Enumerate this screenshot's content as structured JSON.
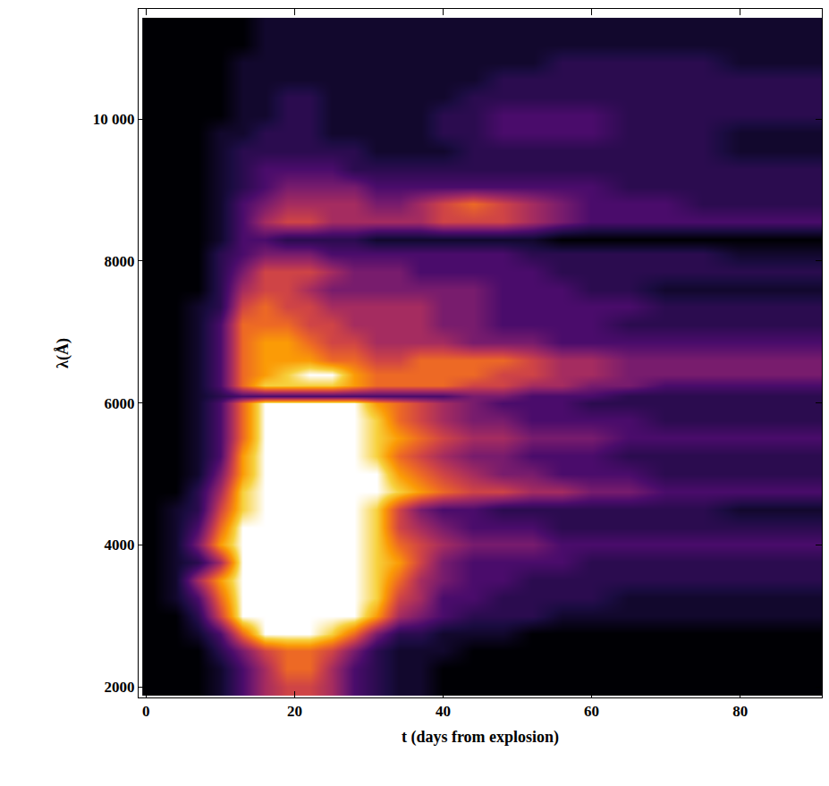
{
  "chart_data": {
    "type": "heatmap",
    "x_label": "t (days from explosion)",
    "y_label": "λ(Å)",
    "x": [
      1,
      4,
      7,
      10,
      13,
      16,
      19,
      22,
      25,
      28,
      31,
      34,
      37,
      40,
      44,
      48,
      52,
      56,
      60,
      65,
      70,
      75,
      80,
      85,
      90
    ],
    "y": [
      2000,
      2250,
      2500,
      2750,
      3000,
      3250,
      3500,
      3750,
      4000,
      4250,
      4500,
      4750,
      5000,
      5250,
      5500,
      5750,
      6000,
      6100,
      6250,
      6400,
      6600,
      6850,
      7100,
      7350,
      7600,
      7850,
      8100,
      8300,
      8550,
      8800,
      9050,
      9300,
      9550,
      9800,
      10050,
      10300,
      10550,
      10800,
      11050,
      11300
    ],
    "z": [
      [
        0,
        0,
        0,
        1,
        3,
        5,
        6,
        6,
        5,
        3,
        2,
        1,
        1,
        0,
        0,
        0,
        0,
        0,
        0,
        0,
        0,
        0,
        0,
        0,
        0
      ],
      [
        0,
        0,
        0,
        1,
        3,
        5,
        7,
        7,
        5,
        3,
        2,
        1,
        1,
        0,
        0,
        0,
        0,
        0,
        0,
        0,
        0,
        0,
        0,
        0,
        0
      ],
      [
        0,
        0,
        0,
        2,
        4,
        6,
        7,
        7,
        6,
        4,
        2,
        1,
        1,
        1,
        0,
        0,
        0,
        0,
        0,
        0,
        0,
        0,
        0,
        0,
        0
      ],
      [
        0,
        0,
        1,
        3,
        7,
        10,
        10,
        10,
        9,
        7,
        4,
        2,
        2,
        1,
        1,
        1,
        0,
        0,
        0,
        0,
        0,
        0,
        0,
        0,
        0
      ],
      [
        0,
        0,
        2,
        6,
        10,
        10,
        10,
        10,
        10,
        10,
        8,
        5,
        4,
        3,
        2,
        2,
        2,
        1,
        1,
        1,
        1,
        1,
        1,
        1,
        1
      ],
      [
        0,
        1,
        3,
        7,
        10,
        10,
        10,
        10,
        10,
        10,
        9,
        6,
        5,
        3,
        3,
        2,
        2,
        2,
        2,
        1,
        1,
        1,
        1,
        1,
        1
      ],
      [
        0,
        1,
        5,
        8,
        10,
        10,
        10,
        10,
        10,
        10,
        9,
        7,
        5,
        4,
        3,
        3,
        2,
        2,
        2,
        2,
        2,
        2,
        2,
        2,
        2
      ],
      [
        0,
        1,
        2,
        5,
        10,
        10,
        10,
        10,
        10,
        10,
        9,
        8,
        6,
        4,
        3,
        3,
        3,
        3,
        2,
        2,
        2,
        2,
        2,
        2,
        2
      ],
      [
        0,
        1,
        4,
        8,
        10,
        10,
        10,
        10,
        10,
        10,
        9,
        7,
        6,
        5,
        4,
        4,
        4,
        3,
        3,
        3,
        3,
        3,
        3,
        3,
        3
      ],
      [
        0,
        1,
        3,
        7,
        10,
        10,
        10,
        10,
        10,
        10,
        9,
        6,
        5,
        4,
        3,
        3,
        3,
        2,
        2,
        2,
        2,
        2,
        2,
        2,
        2
      ],
      [
        0,
        1,
        2,
        6,
        9,
        10,
        10,
        10,
        10,
        10,
        9,
        6,
        4,
        3,
        3,
        2,
        2,
        2,
        2,
        2,
        2,
        2,
        1,
        1,
        1
      ],
      [
        0,
        0,
        2,
        5,
        9,
        10,
        10,
        10,
        10,
        10,
        10,
        9,
        8,
        7,
        6,
        6,
        5,
        5,
        4,
        4,
        3,
        3,
        3,
        3,
        3
      ],
      [
        0,
        0,
        1,
        4,
        8,
        10,
        10,
        10,
        10,
        10,
        10,
        8,
        7,
        6,
        5,
        4,
        4,
        3,
        3,
        3,
        2,
        2,
        2,
        2,
        2
      ],
      [
        0,
        0,
        1,
        3,
        8,
        10,
        10,
        10,
        10,
        10,
        9,
        7,
        6,
        5,
        4,
        4,
        3,
        3,
        3,
        2,
        2,
        2,
        2,
        2,
        2
      ],
      [
        0,
        0,
        1,
        3,
        7,
        10,
        10,
        10,
        10,
        10,
        9,
        8,
        7,
        6,
        5,
        5,
        4,
        4,
        4,
        3,
        3,
        3,
        3,
        3,
        3
      ],
      [
        0,
        0,
        1,
        3,
        7,
        10,
        10,
        10,
        10,
        10,
        9,
        7,
        6,
        5,
        4,
        4,
        3,
        3,
        3,
        3,
        2,
        2,
        2,
        2,
        2
      ],
      [
        0,
        0,
        1,
        3,
        7,
        10,
        10,
        10,
        10,
        10,
        8,
        7,
        6,
        5,
        4,
        3,
        3,
        3,
        2,
        2,
        2,
        2,
        2,
        2,
        2
      ],
      [
        0,
        0,
        1,
        2,
        3,
        3,
        3,
        3,
        3,
        3,
        3,
        3,
        3,
        3,
        4,
        4,
        3,
        3,
        3,
        2,
        2,
        2,
        2,
        2,
        2
      ],
      [
        0,
        0,
        1,
        3,
        7,
        9,
        9,
        9,
        9,
        8,
        7,
        7,
        7,
        7,
        6,
        6,
        5,
        5,
        4,
        4,
        3,
        3,
        3,
        3,
        3
      ],
      [
        0,
        0,
        1,
        3,
        7,
        8,
        9,
        10,
        10,
        8,
        7,
        7,
        7,
        7,
        7,
        6,
        6,
        5,
        5,
        4,
        4,
        4,
        4,
        4,
        4
      ],
      [
        0,
        0,
        1,
        3,
        7,
        8,
        8,
        8,
        7,
        7,
        6,
        6,
        7,
        7,
        7,
        7,
        6,
        5,
        5,
        4,
        4,
        4,
        4,
        4,
        4
      ],
      [
        0,
        0,
        1,
        3,
        7,
        8,
        8,
        7,
        6,
        6,
        5,
        5,
        5,
        5,
        4,
        4,
        4,
        3,
        3,
        3,
        3,
        3,
        3,
        3,
        3
      ],
      [
        0,
        0,
        1,
        3,
        7,
        7,
        7,
        6,
        6,
        5,
        5,
        5,
        5,
        4,
        4,
        3,
        3,
        3,
        3,
        2,
        2,
        2,
        2,
        2,
        2
      ],
      [
        0,
        0,
        1,
        2,
        6,
        7,
        6,
        6,
        5,
        5,
        5,
        5,
        5,
        4,
        4,
        3,
        3,
        3,
        3,
        3,
        2,
        2,
        2,
        2,
        2
      ],
      [
        0,
        0,
        0,
        2,
        5,
        6,
        6,
        5,
        4,
        4,
        4,
        4,
        4,
        4,
        4,
        3,
        3,
        3,
        2,
        2,
        1,
        1,
        1,
        1,
        1
      ],
      [
        0,
        0,
        0,
        2,
        4,
        6,
        6,
        6,
        5,
        4,
        4,
        4,
        3,
        3,
        3,
        3,
        3,
        2,
        2,
        2,
        2,
        2,
        2,
        2,
        2
      ],
      [
        0,
        0,
        0,
        2,
        3,
        4,
        4,
        4,
        3,
        3,
        3,
        3,
        3,
        3,
        3,
        3,
        2,
        2,
        2,
        2,
        2,
        2,
        1,
        1,
        1
      ],
      [
        0,
        0,
        0,
        1,
        3,
        3,
        2,
        2,
        2,
        2,
        1,
        1,
        1,
        1,
        1,
        1,
        1,
        0,
        0,
        0,
        0,
        0,
        0,
        0,
        0
      ],
      [
        0,
        0,
        0,
        1,
        3,
        5,
        6,
        6,
        5,
        5,
        5,
        5,
        5,
        6,
        6,
        6,
        5,
        4,
        3,
        3,
        3,
        3,
        3,
        3,
        3
      ],
      [
        0,
        0,
        0,
        1,
        3,
        4,
        5,
        5,
        5,
        5,
        4,
        4,
        5,
        6,
        7,
        6,
        5,
        4,
        3,
        3,
        3,
        2,
        2,
        2,
        2
      ],
      [
        0,
        0,
        0,
        1,
        2,
        3,
        4,
        4,
        4,
        4,
        3,
        3,
        3,
        3,
        3,
        3,
        3,
        3,
        3,
        2,
        2,
        2,
        2,
        2,
        2
      ],
      [
        0,
        0,
        0,
        1,
        2,
        3,
        3,
        3,
        3,
        2,
        2,
        2,
        2,
        2,
        2,
        2,
        2,
        2,
        2,
        2,
        2,
        2,
        2,
        2,
        2
      ],
      [
        0,
        0,
        0,
        1,
        2,
        2,
        2,
        2,
        2,
        2,
        1,
        1,
        1,
        1,
        2,
        2,
        2,
        2,
        2,
        2,
        2,
        2,
        1,
        1,
        1
      ],
      [
        0,
        0,
        0,
        1,
        1,
        2,
        2,
        2,
        1,
        1,
        1,
        1,
        1,
        2,
        2,
        3,
        3,
        3,
        3,
        2,
        2,
        2,
        1,
        1,
        1
      ],
      [
        0,
        0,
        0,
        0,
        1,
        1,
        2,
        2,
        1,
        1,
        1,
        1,
        1,
        2,
        2,
        3,
        3,
        3,
        3,
        2,
        2,
        2,
        2,
        2,
        2
      ],
      [
        0,
        0,
        0,
        0,
        1,
        1,
        2,
        2,
        1,
        1,
        1,
        1,
        1,
        1,
        2,
        2,
        2,
        2,
        2,
        2,
        2,
        2,
        2,
        2,
        2
      ],
      [
        0,
        0,
        0,
        0,
        1,
        1,
        1,
        1,
        1,
        1,
        1,
        1,
        1,
        1,
        1,
        2,
        2,
        2,
        2,
        2,
        2,
        2,
        2,
        2,
        2
      ],
      [
        0,
        0,
        0,
        0,
        1,
        1,
        1,
        1,
        1,
        1,
        1,
        1,
        1,
        1,
        1,
        1,
        1,
        2,
        2,
        2,
        2,
        2,
        1,
        1,
        1
      ],
      [
        0,
        0,
        0,
        0,
        0,
        1,
        1,
        1,
        1,
        1,
        1,
        1,
        1,
        1,
        1,
        1,
        1,
        1,
        1,
        1,
        1,
        1,
        1,
        1,
        1
      ],
      [
        0,
        0,
        0,
        0,
        0,
        1,
        1,
        1,
        1,
        1,
        1,
        1,
        1,
        1,
        1,
        1,
        1,
        1,
        1,
        1,
        1,
        1,
        1,
        1,
        1
      ]
    ],
    "zlim": [
      0,
      10
    ],
    "xlim": [
      -1,
      91
    ],
    "ylim": [
      1850,
      11550
    ],
    "xticks": [
      0,
      20,
      40,
      60,
      80
    ],
    "yticks": [
      2000,
      4000,
      6000,
      8000,
      {
        "value": 10000,
        "label": "10 000"
      }
    ]
  }
}
